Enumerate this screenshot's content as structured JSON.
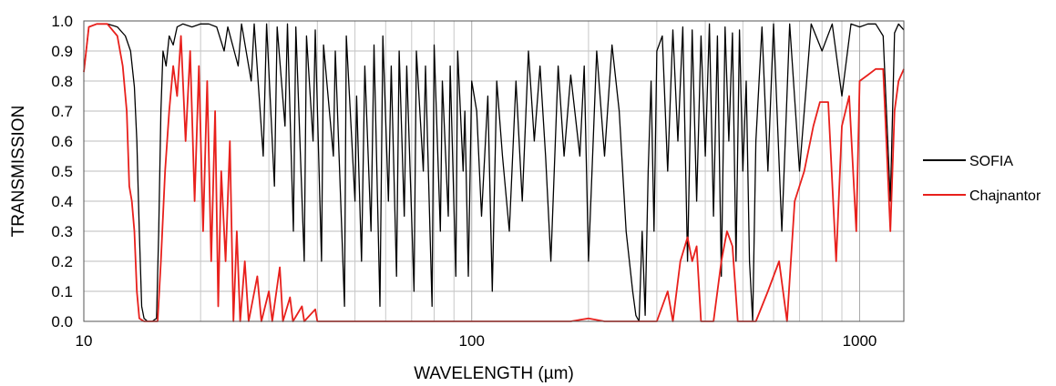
{
  "chart_data": {
    "type": "line",
    "xlabel": "WAVELENGTH (µm)",
    "ylabel": "TRANSMISSION",
    "xscale": "log",
    "xlim": [
      10,
      1300
    ],
    "ylim": [
      0,
      1.0
    ],
    "grid": true,
    "legend_position": "right",
    "x_tick_labels": [
      "10",
      "100",
      "1000"
    ],
    "y_tick_labels": [
      "0.0",
      "0.1",
      "0.2",
      "0.3",
      "0.4",
      "0.5",
      "0.6",
      "0.7",
      "0.8",
      "0.9",
      "1.0"
    ],
    "series": [
      {
        "name": "SOFIA",
        "color": "#000000",
        "points": [
          [
            10.0,
            0.83
          ],
          [
            10.3,
            0.98
          ],
          [
            10.8,
            0.99
          ],
          [
            11.5,
            0.99
          ],
          [
            12.2,
            0.98
          ],
          [
            12.8,
            0.95
          ],
          [
            13.2,
            0.9
          ],
          [
            13.5,
            0.78
          ],
          [
            13.7,
            0.6
          ],
          [
            13.9,
            0.3
          ],
          [
            14.1,
            0.05
          ],
          [
            14.3,
            0.01
          ],
          [
            14.6,
            0.0
          ],
          [
            15.0,
            0.0
          ],
          [
            15.4,
            0.01
          ],
          [
            15.6,
            0.3
          ],
          [
            15.8,
            0.7
          ],
          [
            16.0,
            0.9
          ],
          [
            16.3,
            0.85
          ],
          [
            16.6,
            0.95
          ],
          [
            17.0,
            0.92
          ],
          [
            17.4,
            0.98
          ],
          [
            18.0,
            0.99
          ],
          [
            19.0,
            0.98
          ],
          [
            20.0,
            0.99
          ],
          [
            21.0,
            0.99
          ],
          [
            22.0,
            0.98
          ],
          [
            23.0,
            0.9
          ],
          [
            23.5,
            0.98
          ],
          [
            25.0,
            0.85
          ],
          [
            25.5,
            0.99
          ],
          [
            27.0,
            0.8
          ],
          [
            27.5,
            0.99
          ],
          [
            29.0,
            0.55
          ],
          [
            29.6,
            0.99
          ],
          [
            31.0,
            0.45
          ],
          [
            31.5,
            0.98
          ],
          [
            33.0,
            0.65
          ],
          [
            33.5,
            0.99
          ],
          [
            34.7,
            0.3
          ],
          [
            35.2,
            0.98
          ],
          [
            37.0,
            0.2
          ],
          [
            37.5,
            0.95
          ],
          [
            39.0,
            0.6
          ],
          [
            39.5,
            0.97
          ],
          [
            41.0,
            0.2
          ],
          [
            41.5,
            0.92
          ],
          [
            44.0,
            0.55
          ],
          [
            44.5,
            0.9
          ],
          [
            47.0,
            0.05
          ],
          [
            47.5,
            0.95
          ],
          [
            50.0,
            0.4
          ],
          [
            50.5,
            0.75
          ],
          [
            52.0,
            0.2
          ],
          [
            53.0,
            0.85
          ],
          [
            55.0,
            0.3
          ],
          [
            56.0,
            0.92
          ],
          [
            58.0,
            0.05
          ],
          [
            59.0,
            0.95
          ],
          [
            61.0,
            0.4
          ],
          [
            62.0,
            0.85
          ],
          [
            64.0,
            0.15
          ],
          [
            65.0,
            0.9
          ],
          [
            67.0,
            0.35
          ],
          [
            68.0,
            0.85
          ],
          [
            71.0,
            0.1
          ],
          [
            72.0,
            0.9
          ],
          [
            75.0,
            0.5
          ],
          [
            76.0,
            0.85
          ],
          [
            79.0,
            0.05
          ],
          [
            80.0,
            0.92
          ],
          [
            83.0,
            0.3
          ],
          [
            84.0,
            0.8
          ],
          [
            87.0,
            0.35
          ],
          [
            88.0,
            0.85
          ],
          [
            91.0,
            0.15
          ],
          [
            92.0,
            0.9
          ],
          [
            95.0,
            0.5
          ],
          [
            96.0,
            0.7
          ],
          [
            98.0,
            0.15
          ],
          [
            100.0,
            0.8
          ],
          [
            103.0,
            0.7
          ],
          [
            106.0,
            0.35
          ],
          [
            110.0,
            0.75
          ],
          [
            113.0,
            0.1
          ],
          [
            116.0,
            0.8
          ],
          [
            120.0,
            0.55
          ],
          [
            125.0,
            0.3
          ],
          [
            130.0,
            0.8
          ],
          [
            135.0,
            0.4
          ],
          [
            140.0,
            0.9
          ],
          [
            145.0,
            0.6
          ],
          [
            150.0,
            0.85
          ],
          [
            155.0,
            0.55
          ],
          [
            160.0,
            0.2
          ],
          [
            167.0,
            0.85
          ],
          [
            173.0,
            0.55
          ],
          [
            180.0,
            0.82
          ],
          [
            190.0,
            0.55
          ],
          [
            195.0,
            0.85
          ],
          [
            200.0,
            0.2
          ],
          [
            210.0,
            0.9
          ],
          [
            220.0,
            0.55
          ],
          [
            230.0,
            0.92
          ],
          [
            240.0,
            0.7
          ],
          [
            250.0,
            0.3
          ],
          [
            260.0,
            0.1
          ],
          [
            265.0,
            0.02
          ],
          [
            270.0,
            0.0
          ],
          [
            275.0,
            0.3
          ],
          [
            280.0,
            0.02
          ],
          [
            285.0,
            0.5
          ],
          [
            290.0,
            0.8
          ],
          [
            295.0,
            0.3
          ],
          [
            300.0,
            0.9
          ],
          [
            310.0,
            0.95
          ],
          [
            320.0,
            0.5
          ],
          [
            330.0,
            0.97
          ],
          [
            340.0,
            0.6
          ],
          [
            350.0,
            0.98
          ],
          [
            360.0,
            0.2
          ],
          [
            370.0,
            0.97
          ],
          [
            380.0,
            0.4
          ],
          [
            390.0,
            0.95
          ],
          [
            400.0,
            0.55
          ],
          [
            410.0,
            0.99
          ],
          [
            420.0,
            0.35
          ],
          [
            430.0,
            0.95
          ],
          [
            440.0,
            0.15
          ],
          [
            450.0,
            0.98
          ],
          [
            460.0,
            0.6
          ],
          [
            470.0,
            0.96
          ],
          [
            480.0,
            0.2
          ],
          [
            490.0,
            0.97
          ],
          [
            500.0,
            0.5
          ],
          [
            510.0,
            0.8
          ],
          [
            520.0,
            0.2
          ],
          [
            530.0,
            0.0
          ],
          [
            540.0,
            0.6
          ],
          [
            560.0,
            0.98
          ],
          [
            580.0,
            0.5
          ],
          [
            600.0,
            0.99
          ],
          [
            630.0,
            0.3
          ],
          [
            660.0,
            0.99
          ],
          [
            700.0,
            0.5
          ],
          [
            750.0,
            0.99
          ],
          [
            800.0,
            0.9
          ],
          [
            850.0,
            0.99
          ],
          [
            900.0,
            0.75
          ],
          [
            950.0,
            0.99
          ],
          [
            1000.0,
            0.98
          ],
          [
            1050.0,
            0.99
          ],
          [
            1100.0,
            0.99
          ],
          [
            1150.0,
            0.95
          ],
          [
            1200.0,
            0.4
          ],
          [
            1230.0,
            0.96
          ],
          [
            1260.0,
            0.99
          ],
          [
            1300.0,
            0.97
          ]
        ]
      },
      {
        "name": "Chajnantor",
        "color": "#e8201c",
        "points": [
          [
            10.0,
            0.83
          ],
          [
            10.3,
            0.98
          ],
          [
            10.8,
            0.99
          ],
          [
            11.5,
            0.99
          ],
          [
            12.2,
            0.95
          ],
          [
            12.6,
            0.85
          ],
          [
            12.9,
            0.7
          ],
          [
            13.1,
            0.45
          ],
          [
            13.3,
            0.4
          ],
          [
            13.5,
            0.3
          ],
          [
            13.7,
            0.1
          ],
          [
            13.9,
            0.01
          ],
          [
            14.3,
            0.0
          ],
          [
            15.0,
            0.0
          ],
          [
            15.5,
            0.0
          ],
          [
            15.8,
            0.2
          ],
          [
            16.2,
            0.5
          ],
          [
            16.6,
            0.7
          ],
          [
            17.0,
            0.85
          ],
          [
            17.4,
            0.75
          ],
          [
            17.8,
            0.95
          ],
          [
            18.3,
            0.6
          ],
          [
            18.8,
            0.9
          ],
          [
            19.3,
            0.4
          ],
          [
            19.8,
            0.85
          ],
          [
            20.3,
            0.3
          ],
          [
            20.8,
            0.8
          ],
          [
            21.3,
            0.2
          ],
          [
            21.8,
            0.7
          ],
          [
            22.2,
            0.05
          ],
          [
            22.6,
            0.5
          ],
          [
            23.2,
            0.2
          ],
          [
            23.8,
            0.6
          ],
          [
            24.3,
            0.0
          ],
          [
            24.8,
            0.3
          ],
          [
            25.3,
            0.0
          ],
          [
            26.0,
            0.2
          ],
          [
            26.6,
            0.0
          ],
          [
            28.0,
            0.15
          ],
          [
            28.7,
            0.0
          ],
          [
            30.0,
            0.1
          ],
          [
            30.6,
            0.0
          ],
          [
            32.0,
            0.18
          ],
          [
            32.6,
            0.0
          ],
          [
            34.0,
            0.08
          ],
          [
            34.6,
            0.0
          ],
          [
            36.5,
            0.05
          ],
          [
            37.0,
            0.0
          ],
          [
            39.5,
            0.04
          ],
          [
            40.0,
            0.0
          ],
          [
            50.0,
            0.0
          ],
          [
            100.0,
            0.0
          ],
          [
            150.0,
            0.0
          ],
          [
            180.0,
            0.0
          ],
          [
            200.0,
            0.01
          ],
          [
            220.0,
            0.0
          ],
          [
            280.0,
            0.0
          ],
          [
            300.0,
            0.0
          ],
          [
            320.0,
            0.1
          ],
          [
            330.0,
            0.0
          ],
          [
            345.0,
            0.2
          ],
          [
            360.0,
            0.28
          ],
          [
            370.0,
            0.2
          ],
          [
            380.0,
            0.25
          ],
          [
            390.0,
            0.0
          ],
          [
            420.0,
            0.0
          ],
          [
            440.0,
            0.2
          ],
          [
            455.0,
            0.3
          ],
          [
            470.0,
            0.25
          ],
          [
            485.0,
            0.0
          ],
          [
            540.0,
            0.0
          ],
          [
            580.0,
            0.1
          ],
          [
            620.0,
            0.2
          ],
          [
            650.0,
            0.0
          ],
          [
            680.0,
            0.4
          ],
          [
            720.0,
            0.5
          ],
          [
            760.0,
            0.65
          ],
          [
            790.0,
            0.73
          ],
          [
            830.0,
            0.73
          ],
          [
            870.0,
            0.2
          ],
          [
            900.0,
            0.65
          ],
          [
            940.0,
            0.75
          ],
          [
            980.0,
            0.3
          ],
          [
            1000.0,
            0.8
          ],
          [
            1050.0,
            0.82
          ],
          [
            1100.0,
            0.84
          ],
          [
            1150.0,
            0.84
          ],
          [
            1200.0,
            0.3
          ],
          [
            1230.0,
            0.7
          ],
          [
            1260.0,
            0.8
          ],
          [
            1300.0,
            0.84
          ]
        ]
      }
    ]
  }
}
